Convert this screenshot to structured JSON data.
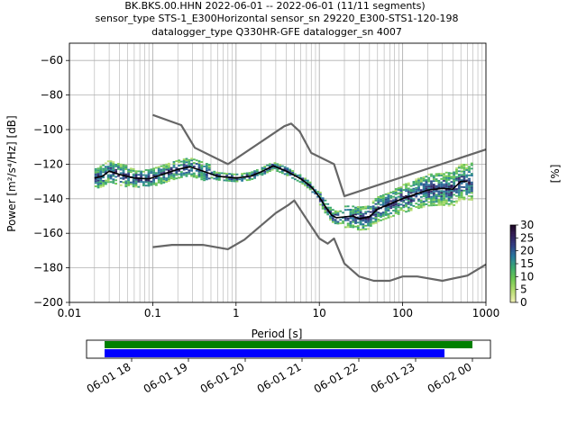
{
  "header": {
    "line1": "BK.BKS.00.HHN   2022-06-01 -- 2022-06-01  (11/11 segments)",
    "line2": "sensor_type STS-1_E300Horizontal sensor_sn 29220_E300-STS1-120-198",
    "line3": "datalogger_type Q330HR-GFE datalogger_sn 4007"
  },
  "chart_data": [
    {
      "type": "heatmap",
      "subtype": "probabilistic power spectral density",
      "xlabel": "Period [s]",
      "ylabel": "Power [m²/s⁴/Hz] [dB]",
      "xscale": "log",
      "xlim": [
        0.01,
        1000
      ],
      "ylim": [
        -200,
        -50
      ],
      "x_ticks": [
        0.01,
        0.1,
        1,
        10,
        100,
        1000
      ],
      "x_tick_labels": [
        "0.01",
        "0.1",
        "1",
        "10",
        "100",
        "1000"
      ],
      "y_ticks": [
        -200,
        -180,
        -160,
        -140,
        -120,
        -100,
        -80,
        -60
      ],
      "y_tick_labels": [
        "−200",
        "−180",
        "−160",
        "−140",
        "−120",
        "−100",
        "−80",
        "−60"
      ],
      "grid": true,
      "colorbar": {
        "label": "[%]",
        "min": 0,
        "max": 30,
        "ticks": [
          0,
          5,
          10,
          15,
          20,
          25,
          30
        ],
        "colormap": "pqlx"
      },
      "series": [
        {
          "role": "noise-model",
          "color": "#666666",
          "x": [
            0.1,
            0.22,
            0.32,
            0.8,
            3.8,
            4.6,
            5.8,
            8,
            15,
            20,
            1000
          ],
          "y": [
            -91.5,
            -97.4,
            -110.5,
            -120,
            -98,
            -96.5,
            -101,
            -113.5,
            -120,
            -138.5,
            -111.5
          ]
        },
        {
          "role": "noise-model",
          "color": "#666666",
          "x": [
            0.1,
            0.17,
            0.4,
            0.8,
            1.26,
            3,
            4.2,
            5,
            10,
            12.6,
            15,
            20,
            30,
            45,
            70,
            100,
            150,
            300,
            600,
            1000
          ],
          "y": [
            -168,
            -166.7,
            -166.7,
            -169.2,
            -163.7,
            -148.3,
            -143.8,
            -141,
            -163,
            -166,
            -163,
            -177.5,
            -185,
            -187.5,
            -187.5,
            -185,
            -185,
            -187.5,
            -184.5,
            -178
          ]
        },
        {
          "role": "mean",
          "color": "#000000",
          "x": [
            0.02,
            0.025,
            0.03,
            0.04,
            0.06,
            0.09,
            0.13,
            0.2,
            0.28,
            0.4,
            0.6,
            1,
            1.5,
            2,
            2.8,
            4,
            6,
            8,
            10,
            12,
            14,
            16,
            20,
            25,
            30,
            40,
            50,
            70,
            100,
            150,
            200,
            300,
            400,
            500,
            600
          ],
          "y": [
            -128,
            -127,
            -124,
            -126,
            -128,
            -128.5,
            -126,
            -123,
            -121.5,
            -124,
            -127,
            -128,
            -127,
            -124.5,
            -121,
            -124,
            -128.5,
            -133,
            -139,
            -145,
            -149.5,
            -151,
            -150.5,
            -150,
            -151.5,
            -150.5,
            -146,
            -143,
            -140,
            -137,
            -135,
            -134,
            -134.5,
            -130,
            -130
          ]
        }
      ]
    },
    {
      "type": "timeline",
      "x_tick_labels": [
        "06-01 18",
        "06-01 19",
        "06-01 20",
        "06-01 21",
        "06-01 22",
        "06-01 23",
        "06-02 00"
      ],
      "series": [
        {
          "role": "data-coverage",
          "color": "#008000"
        },
        {
          "role": "psd-coverage",
          "color": "#0000ff"
        }
      ]
    }
  ]
}
